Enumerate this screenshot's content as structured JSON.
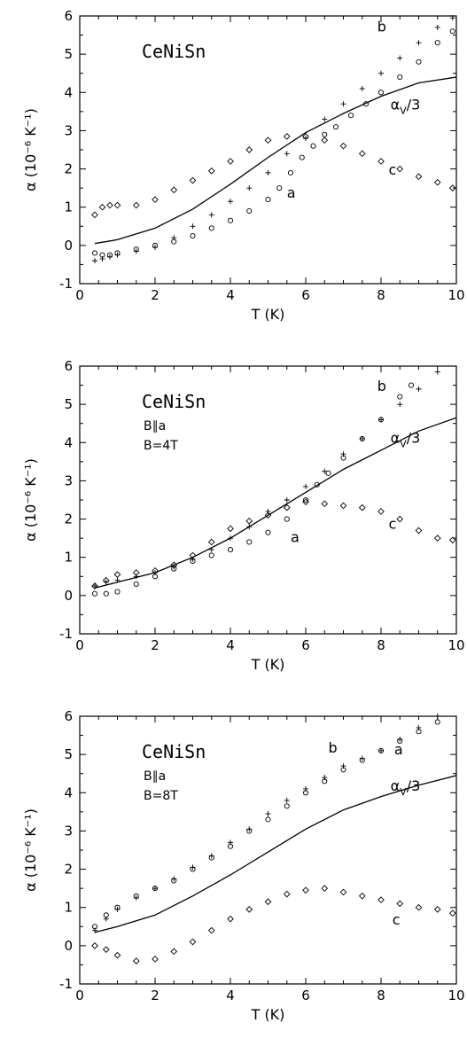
{
  "chart_data": [
    {
      "type": "scatter",
      "title": "",
      "annotations": {
        "compound": "CeNiSn",
        "conditions": []
      },
      "xlabel": "T  (K)",
      "ylabel": "α  (10⁻⁶ K⁻¹)",
      "xlim": [
        0,
        10
      ],
      "ylim": [
        -1,
        6
      ],
      "x_ticks": [
        "0",
        "2",
        "4",
        "6",
        "8",
        "10"
      ],
      "y_ticks": [
        "-1",
        "0",
        "1",
        "2",
        "3",
        "4",
        "5",
        "6"
      ],
      "series": [
        {
          "name": "a",
          "marker": "circle",
          "x": [
            0.4,
            0.6,
            0.8,
            1,
            1.5,
            2,
            2.5,
            3,
            3.5,
            4,
            4.5,
            5,
            5.3,
            5.6,
            5.9,
            6.2,
            6.5,
            6.8,
            7.2,
            7.6,
            8,
            8.5,
            9,
            9.5,
            9.9
          ],
          "y": [
            -0.2,
            -0.25,
            -0.25,
            -0.2,
            -0.1,
            0,
            0.1,
            0.25,
            0.45,
            0.65,
            0.9,
            1.2,
            1.5,
            1.9,
            2.3,
            2.6,
            2.9,
            3.1,
            3.4,
            3.7,
            4,
            4.4,
            4.8,
            5.3,
            5.6
          ]
        },
        {
          "name": "b",
          "marker": "plus",
          "x": [
            0.4,
            0.6,
            0.8,
            1,
            1.5,
            2,
            2.5,
            3,
            3.5,
            4,
            4.5,
            5,
            5.5,
            6,
            6.5,
            7,
            7.5,
            8,
            8.5,
            9,
            9.5,
            9.9
          ],
          "y": [
            -0.4,
            -0.35,
            -0.3,
            -0.25,
            -0.15,
            -0.05,
            0.2,
            0.5,
            0.8,
            1.15,
            1.5,
            1.9,
            2.4,
            2.8,
            3.3,
            3.7,
            4.1,
            4.5,
            4.9,
            5.3,
            5.7,
            5.95
          ]
        },
        {
          "name": "c",
          "marker": "diamond",
          "x": [
            0.4,
            0.6,
            0.8,
            1,
            1.5,
            2,
            2.5,
            3,
            3.5,
            4,
            4.5,
            5,
            5.5,
            6,
            6.5,
            7,
            7.5,
            8,
            8.5,
            9,
            9.5,
            9.9
          ],
          "y": [
            0.8,
            1,
            1.05,
            1.05,
            1.05,
            1.2,
            1.45,
            1.7,
            1.95,
            2.2,
            2.5,
            2.75,
            2.85,
            2.85,
            2.75,
            2.6,
            2.4,
            2.2,
            2,
            1.8,
            1.65,
            1.5
          ]
        },
        {
          "name": "α_V/3",
          "marker": "line",
          "x": [
            0.4,
            1,
            2,
            3,
            4,
            5,
            6,
            7,
            8,
            9,
            10
          ],
          "y": [
            0.05,
            0.15,
            0.45,
            0.95,
            1.6,
            2.3,
            2.95,
            3.45,
            3.9,
            4.25,
            4.4
          ]
        }
      ],
      "curve_labels": {
        "a": "a",
        "b": "b",
        "c": "c",
        "av_main": "α",
        "av_sub": "V",
        "av_suffix": "/3"
      }
    },
    {
      "type": "scatter",
      "title": "",
      "annotations": {
        "compound": "CeNiSn",
        "conditions": [
          "B∥a",
          "B=4T"
        ]
      },
      "xlabel": "T  (K)",
      "ylabel": "α  (10⁻⁶ K⁻¹)",
      "xlim": [
        0,
        10
      ],
      "ylim": [
        -1,
        6
      ],
      "x_ticks": [
        "0",
        "2",
        "4",
        "6",
        "8",
        "10"
      ],
      "y_ticks": [
        "-1",
        "0",
        "1",
        "2",
        "3",
        "4",
        "5",
        "6"
      ],
      "series": [
        {
          "name": "a",
          "marker": "circle",
          "x": [
            0.4,
            0.7,
            1,
            1.5,
            2,
            2.5,
            3,
            3.5,
            4,
            4.5,
            5,
            5.5,
            6,
            6.3,
            6.6,
            7,
            7.5,
            8,
            8.5,
            8.8
          ],
          "y": [
            0.05,
            0.05,
            0.1,
            0.3,
            0.5,
            0.7,
            0.9,
            1.05,
            1.2,
            1.4,
            1.65,
            2,
            2.5,
            2.9,
            3.2,
            3.6,
            4.1,
            4.6,
            5.2,
            5.5
          ]
        },
        {
          "name": "b",
          "marker": "plus",
          "x": [
            0.4,
            0.7,
            1,
            1.5,
            2,
            2.5,
            3,
            3.5,
            4,
            4.5,
            5,
            5.5,
            6,
            6.5,
            7,
            7.5,
            8,
            8.5,
            9,
            9.5
          ],
          "y": [
            0.25,
            0.35,
            0.4,
            0.5,
            0.6,
            0.75,
            0.95,
            1.2,
            1.5,
            1.8,
            2.2,
            2.5,
            2.85,
            3.25,
            3.7,
            4.1,
            4.6,
            5,
            5.4,
            5.85
          ]
        },
        {
          "name": "c",
          "marker": "diamond",
          "x": [
            0.4,
            0.7,
            1,
            1.5,
            2,
            2.5,
            3,
            3.5,
            4,
            4.5,
            5,
            5.5,
            6,
            6.5,
            7,
            7.5,
            8,
            8.5,
            9,
            9.5,
            9.9
          ],
          "y": [
            0.25,
            0.4,
            0.55,
            0.6,
            0.65,
            0.8,
            1.05,
            1.4,
            1.75,
            1.95,
            2.1,
            2.3,
            2.45,
            2.4,
            2.35,
            2.3,
            2.2,
            2,
            1.7,
            1.5,
            1.45
          ]
        },
        {
          "name": "α_V/3",
          "marker": "line",
          "x": [
            0.4,
            1,
            2,
            3,
            4,
            5,
            6,
            7,
            8,
            9,
            10
          ],
          "y": [
            0.2,
            0.35,
            0.6,
            1,
            1.5,
            2.1,
            2.7,
            3.3,
            3.8,
            4.3,
            4.65
          ]
        }
      ],
      "curve_labels": {
        "a": "a",
        "b": "b",
        "c": "c",
        "av_main": "α",
        "av_sub": "V",
        "av_suffix": "/3"
      }
    },
    {
      "type": "scatter",
      "title": "",
      "annotations": {
        "compound": "CeNiSn",
        "conditions": [
          "B∥a",
          "B=8T"
        ]
      },
      "xlabel": "T  (K)",
      "ylabel": "α  (10⁻⁶ K⁻¹)",
      "xlim": [
        0,
        10
      ],
      "ylim": [
        -1,
        6
      ],
      "x_ticks": [
        "0",
        "2",
        "4",
        "6",
        "8",
        "10"
      ],
      "y_ticks": [
        "-1",
        "0",
        "1",
        "2",
        "3",
        "4",
        "5",
        "6"
      ],
      "series": [
        {
          "name": "a",
          "marker": "circle",
          "x": [
            0.4,
            0.7,
            1,
            1.5,
            2,
            2.5,
            3,
            3.5,
            4,
            4.5,
            5,
            5.5,
            6,
            6.5,
            7,
            7.5,
            8,
            8.5,
            9,
            9.5
          ],
          "y": [
            0.5,
            0.8,
            1,
            1.3,
            1.5,
            1.7,
            2,
            2.3,
            2.6,
            3,
            3.3,
            3.65,
            4,
            4.3,
            4.6,
            4.85,
            5.1,
            5.35,
            5.6,
            5.85
          ]
        },
        {
          "name": "b",
          "marker": "plus",
          "x": [
            0.4,
            0.7,
            1,
            1.5,
            2,
            2.5,
            3,
            3.5,
            4,
            4.5,
            5,
            5.5,
            6,
            6.5,
            7,
            7.5,
            8,
            8.5,
            9,
            9.5
          ],
          "y": [
            0.4,
            0.7,
            0.95,
            1.25,
            1.5,
            1.75,
            2.05,
            2.35,
            2.7,
            3.05,
            3.45,
            3.8,
            4.1,
            4.4,
            4.7,
            4.9,
            5.1,
            5.4,
            5.7,
            6
          ]
        },
        {
          "name": "c",
          "marker": "diamond",
          "x": [
            0.4,
            0.7,
            1,
            1.5,
            2,
            2.5,
            3,
            3.5,
            4,
            4.5,
            5,
            5.5,
            6,
            6.5,
            7,
            7.5,
            8,
            8.5,
            9,
            9.5,
            9.9
          ],
          "y": [
            0,
            -0.1,
            -0.25,
            -0.4,
            -0.35,
            -0.15,
            0.1,
            0.4,
            0.7,
            0.95,
            1.15,
            1.35,
            1.45,
            1.5,
            1.4,
            1.3,
            1.2,
            1.1,
            1,
            0.95,
            0.85
          ]
        },
        {
          "name": "α_V/3",
          "marker": "line",
          "x": [
            0.4,
            1,
            2,
            3,
            4,
            5,
            6,
            7,
            8,
            9,
            10
          ],
          "y": [
            0.35,
            0.5,
            0.8,
            1.3,
            1.85,
            2.45,
            3.05,
            3.55,
            3.9,
            4.2,
            4.45
          ]
        }
      ],
      "curve_labels": {
        "a": "a",
        "b": "b",
        "c": "c",
        "av_main": "α",
        "av_sub": "V",
        "av_suffix": "/3"
      }
    }
  ]
}
